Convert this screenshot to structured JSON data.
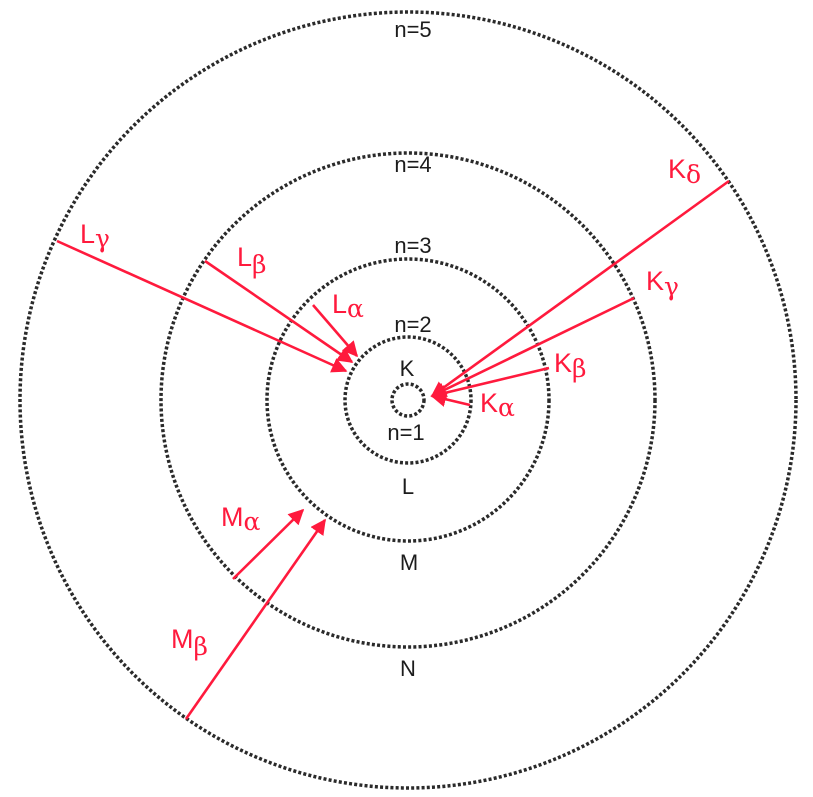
{
  "shells": [
    {
      "n_label": "n=1",
      "letter": "K"
    },
    {
      "n_label": "n=2",
      "letter": "L"
    },
    {
      "n_label": "n=3",
      "letter": "M"
    },
    {
      "n_label": "n=4",
      "letter": "N"
    },
    {
      "n_label": "n=5",
      "letter": ""
    }
  ],
  "transitions": [
    {
      "label": "K",
      "greek": "α",
      "from": "n=2",
      "to": "n=1"
    },
    {
      "label": "K",
      "greek": "β",
      "from": "n=3",
      "to": "n=1"
    },
    {
      "label": "K",
      "greek": "γ",
      "from": "n=4",
      "to": "n=1"
    },
    {
      "label": "K",
      "greek": "δ",
      "from": "n=5",
      "to": "n=1"
    },
    {
      "label": "L",
      "greek": "α",
      "from": "n=3",
      "to": "n=2"
    },
    {
      "label": "L",
      "greek": "β",
      "from": "n=4",
      "to": "n=2"
    },
    {
      "label": "L",
      "greek": "γ",
      "from": "n=5",
      "to": "n=2"
    },
    {
      "label": "M",
      "greek": "α",
      "from": "n=4",
      "to": "n=3"
    },
    {
      "label": "M",
      "greek": "β",
      "from": "n=5",
      "to": "n=3"
    }
  ],
  "colors": {
    "shell": "#2a2a2a",
    "transition": "#ff1a3d",
    "background": "#ffffff"
  }
}
